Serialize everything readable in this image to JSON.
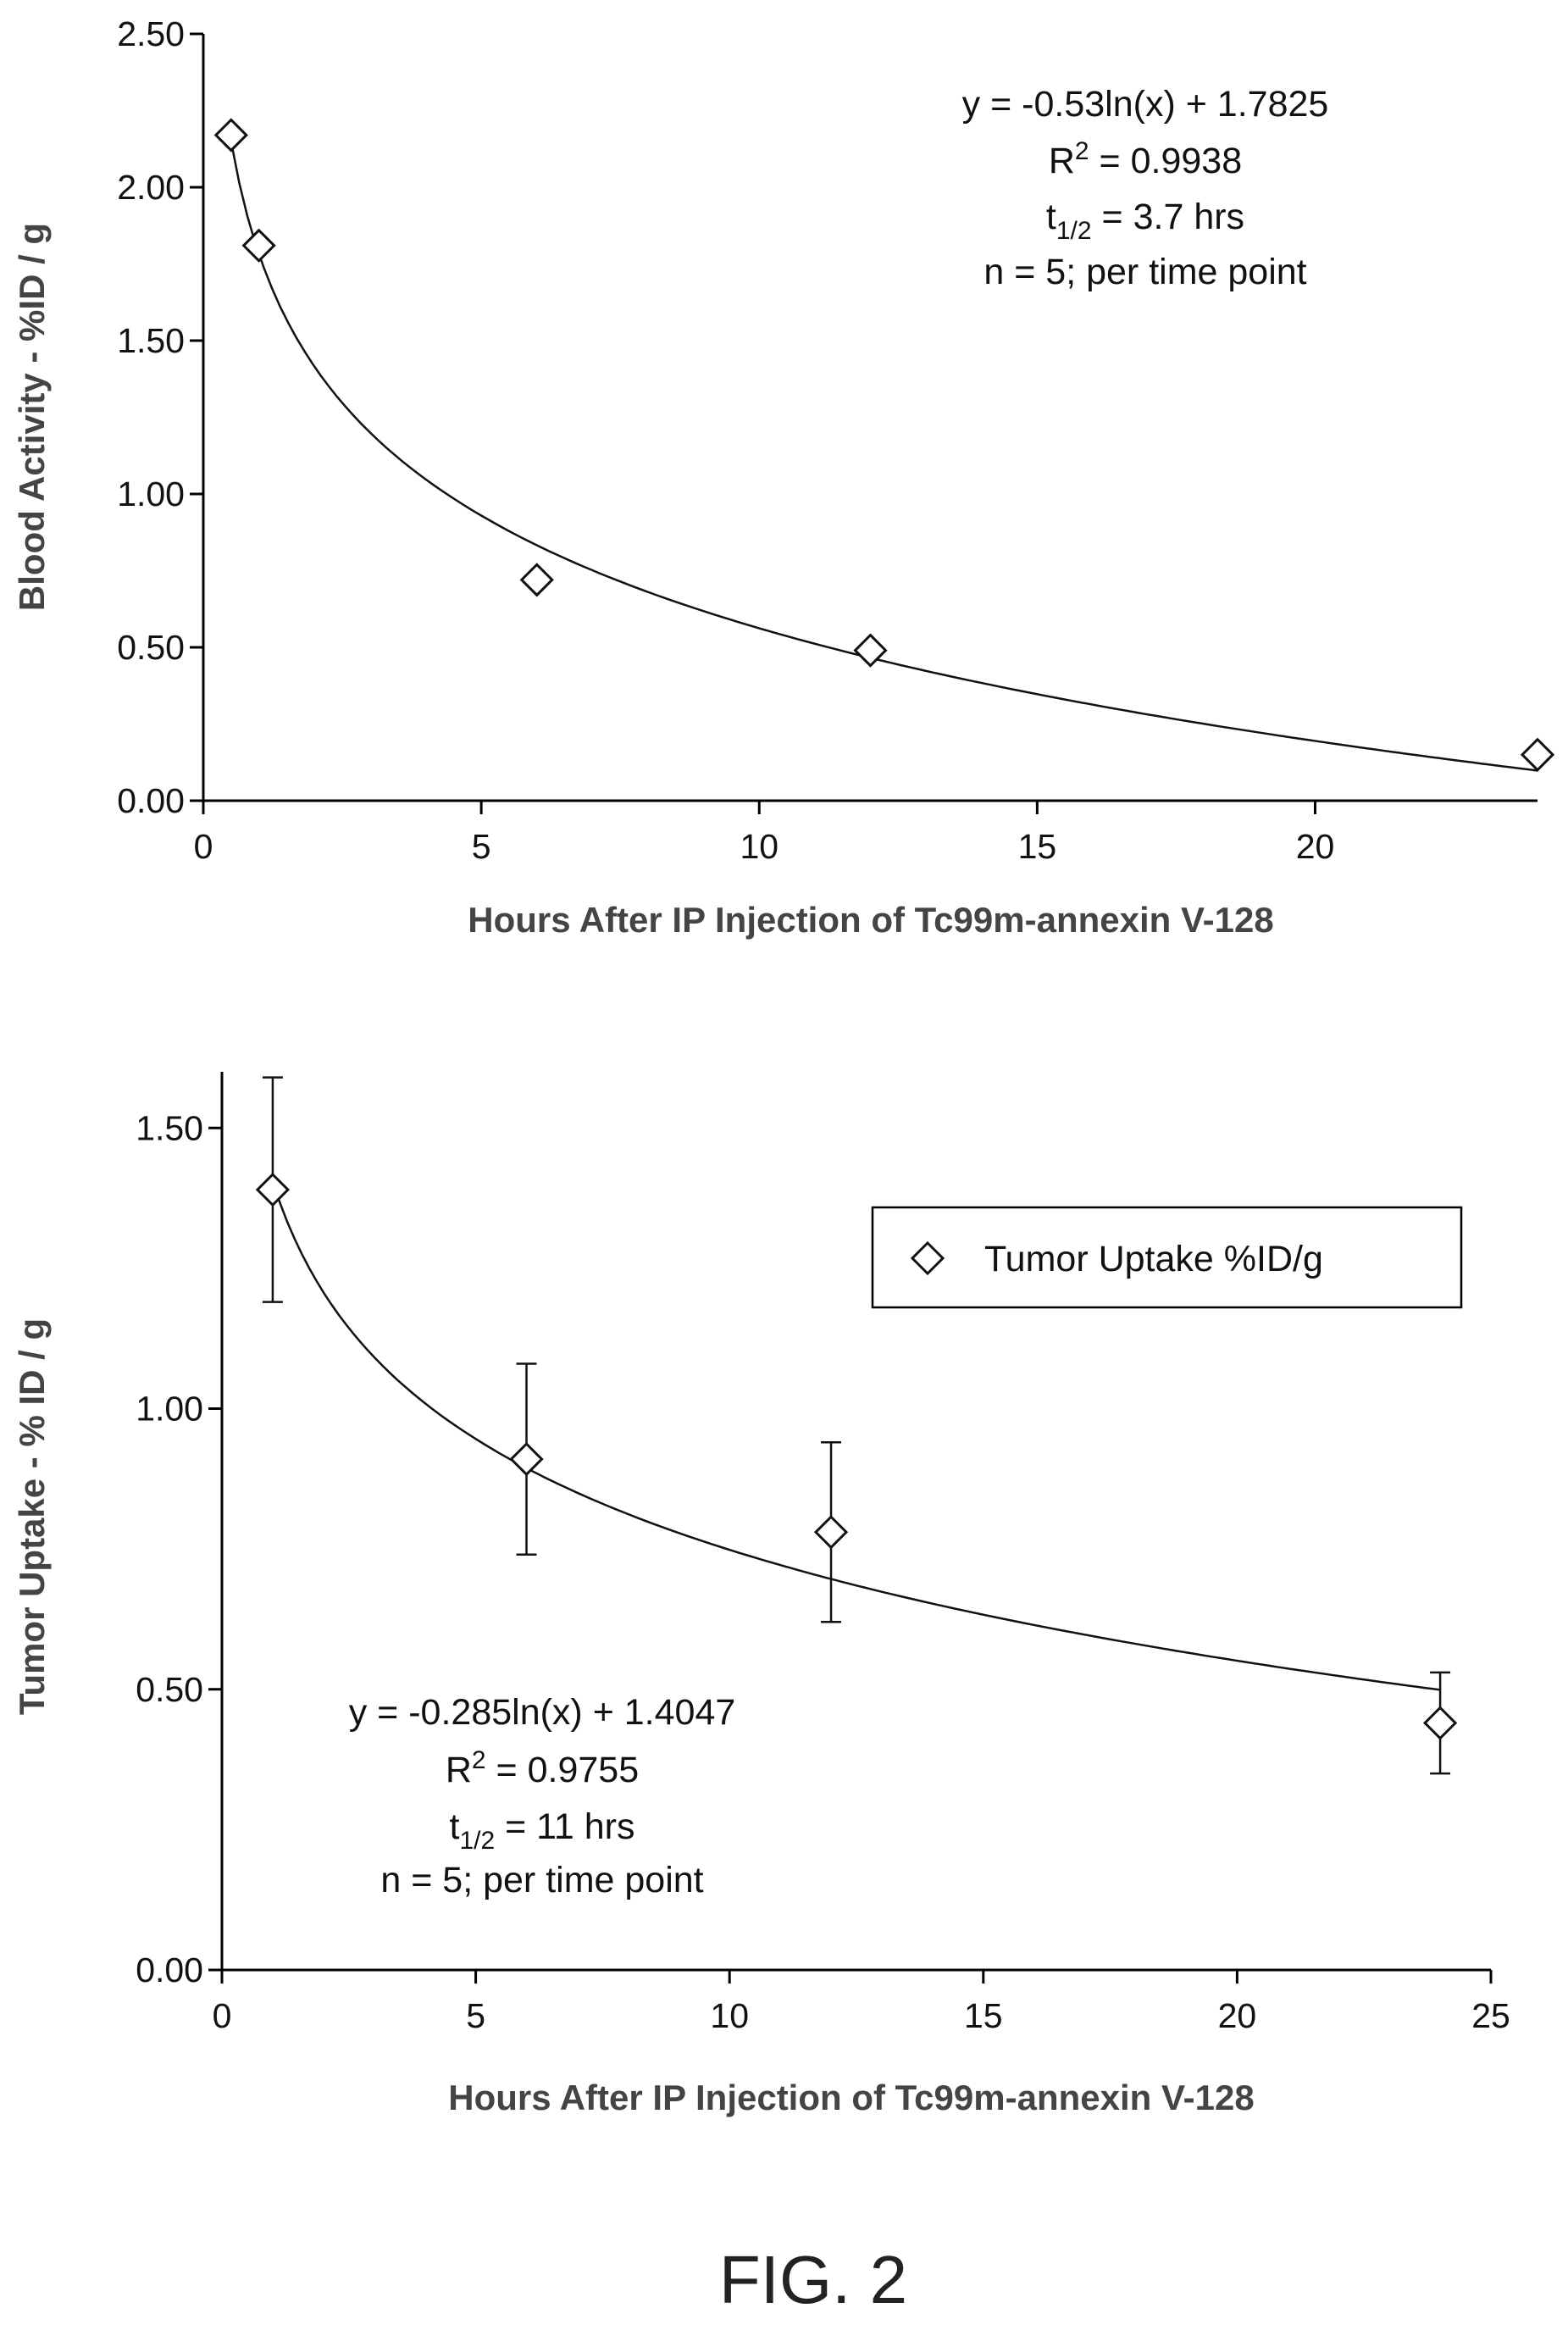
{
  "chart_data": [
    {
      "type": "scatter",
      "x": [
        0.5,
        1,
        6,
        12,
        24
      ],
      "y": [
        2.17,
        1.81,
        0.72,
        0.49,
        0.15
      ],
      "xlabel": "Hours After IP Injection of Tc99m-annexin V-128",
      "ylabel": "Blood Activity - %ID / g",
      "xlim": [
        0,
        24
      ],
      "ylim": [
        0,
        2.5
      ],
      "xticks": [
        "0",
        "5",
        "10",
        "15",
        "20"
      ],
      "yticks": [
        "0.00",
        "0.50",
        "1.00",
        "1.50",
        "2.00",
        "2.50"
      ],
      "fit": {
        "type": "logarithmic",
        "a": -0.53,
        "b": 1.7825
      },
      "grid": false,
      "annotation": {
        "equation": "y = -0.53ln(x) + 1.7825",
        "r2_label": "R",
        "r2_exp": "2",
        "r2_value": " = 0.9938",
        "half_life_label": "t",
        "half_life_sub": "1/2",
        "half_life_value": " = 3.7 hrs",
        "n": "n = 5; per time point"
      }
    },
    {
      "type": "scatter",
      "series": [
        {
          "name": "Tumor Uptake %ID/g",
          "x": [
            1,
            6,
            12,
            24
          ],
          "values": [
            1.39,
            0.91,
            0.78,
            0.44
          ],
          "error": [
            0.2,
            0.17,
            0.16,
            0.09
          ]
        }
      ],
      "xlabel": "Hours After IP Injection of Tc99m-annexin V-128",
      "ylabel": "Tumor Uptake - % ID / g",
      "xlim": [
        0,
        25
      ],
      "ylim": [
        0,
        1.6
      ],
      "xticks": [
        "0",
        "5",
        "10",
        "15",
        "20",
        "25"
      ],
      "yticks": [
        "0.00",
        "0.50",
        "1.00",
        "1.50"
      ],
      "fit": {
        "type": "logarithmic",
        "a": -0.285,
        "b": 1.4047
      },
      "grid": false,
      "legend": {
        "position": "top-right",
        "label": "Tumor Uptake %ID/g"
      },
      "annotation": {
        "equation": "y = -0.285ln(x) + 1.4047",
        "r2_label": "R",
        "r2_exp": "2",
        "r2_value": " = 0.9755",
        "half_life_label": "t",
        "half_life_sub": "1/2",
        "half_life_value": " = 11 hrs",
        "n": "n = 5; per time point"
      }
    }
  ],
  "figure_label": "FIG. 2"
}
